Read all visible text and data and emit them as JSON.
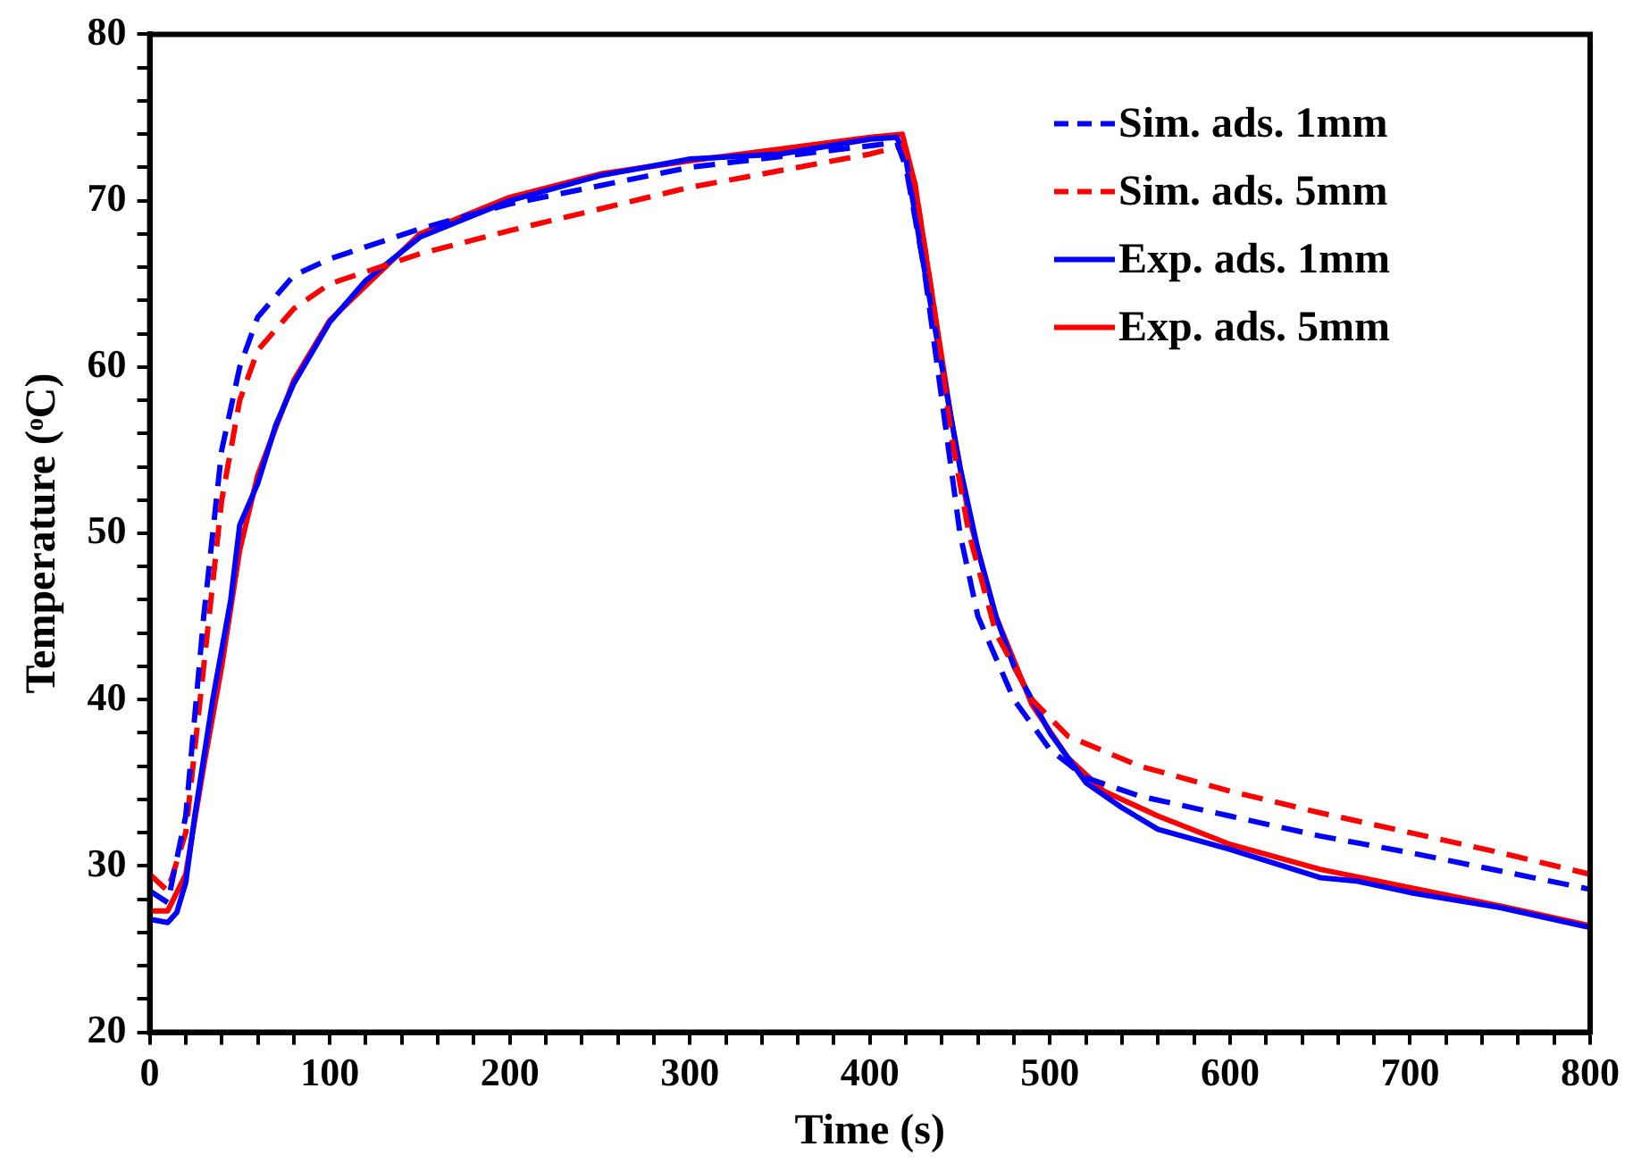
{
  "chart_data": {
    "type": "line",
    "xlabel": "Time (s)",
    "ylabel": "Temperature (ᵒC)",
    "xlim": [
      0,
      800
    ],
    "ylim": [
      20,
      80
    ],
    "xticks": [
      0,
      {
        "value": 20,
        "label": null
      },
      {
        "value": 40,
        "label": null
      },
      {
        "value": 60,
        "label": null
      },
      {
        "value": 80,
        "label": null
      },
      100,
      {
        "value": 120,
        "label": null
      },
      {
        "value": 140,
        "label": null
      },
      {
        "value": 160,
        "label": null
      },
      {
        "value": 180,
        "label": null
      },
      200,
      {
        "value": 220,
        "label": null
      },
      {
        "value": 240,
        "label": null
      },
      {
        "value": 260,
        "label": null
      },
      {
        "value": 280,
        "label": null
      },
      300,
      {
        "value": 320,
        "label": null
      },
      {
        "value": 340,
        "label": null
      },
      {
        "value": 360,
        "label": null
      },
      {
        "value": 380,
        "label": null
      },
      400,
      {
        "value": 420,
        "label": null
      },
      {
        "value": 440,
        "label": null
      },
      {
        "value": 460,
        "label": null
      },
      {
        "value": 480,
        "label": null
      },
      500,
      {
        "value": 520,
        "label": null
      },
      {
        "value": 540,
        "label": null
      },
      {
        "value": 560,
        "label": null
      },
      {
        "value": 580,
        "label": null
      },
      600,
      {
        "value": 620,
        "label": null
      },
      {
        "value": 640,
        "label": null
      },
      {
        "value": 660,
        "label": null
      },
      {
        "value": 680,
        "label": null
      },
      700,
      {
        "value": 720,
        "label": null
      },
      {
        "value": 740,
        "label": null
      },
      {
        "value": 760,
        "label": null
      },
      {
        "value": 780,
        "label": null
      },
      800
    ],
    "yticks": [
      20,
      {
        "value": 22,
        "label": null
      },
      {
        "value": 24,
        "label": null
      },
      {
        "value": 26,
        "label": null
      },
      {
        "value": 28,
        "label": null
      },
      30,
      {
        "value": 32,
        "label": null
      },
      {
        "value": 34,
        "label": null
      },
      {
        "value": 36,
        "label": null
      },
      {
        "value": 38,
        "label": null
      },
      40,
      {
        "value": 42,
        "label": null
      },
      {
        "value": 44,
        "label": null
      },
      {
        "value": 46,
        "label": null
      },
      {
        "value": 48,
        "label": null
      },
      50,
      {
        "value": 52,
        "label": null
      },
      {
        "value": 54,
        "label": null
      },
      {
        "value": 56,
        "label": null
      },
      {
        "value": 58,
        "label": null
      },
      60,
      {
        "value": 62,
        "label": null
      },
      {
        "value": 64,
        "label": null
      },
      {
        "value": 66,
        "label": null
      },
      {
        "value": 68,
        "label": null
      },
      70,
      {
        "value": 72,
        "label": null
      },
      {
        "value": 74,
        "label": null
      },
      {
        "value": 76,
        "label": null
      },
      {
        "value": 78,
        "label": null
      },
      80
    ],
    "grid": false,
    "legend": "top right",
    "marker": "none",
    "series": [
      {
        "name": "Sim. ads. 1mm",
        "color": "#0000ff",
        "line_style": "dashed",
        "x": [
          0,
          10,
          20,
          30,
          40,
          50,
          60,
          80,
          100,
          150,
          200,
          300,
          400,
          415,
          420,
          430,
          440,
          450,
          460,
          480,
          500,
          520,
          550,
          600,
          650,
          700,
          750,
          800
        ],
        "values": [
          28.5,
          27.8,
          33,
          45,
          55,
          60,
          63,
          65.5,
          66.5,
          68.3,
          69.8,
          72,
          73.3,
          73.5,
          72,
          66,
          58,
          50,
          45,
          40,
          37,
          35.3,
          34.2,
          33,
          31.8,
          30.8,
          29.7,
          28.6
        ]
      },
      {
        "name": "Sim. ads. 5mm",
        "color": "#ff0000",
        "line_style": "dashed",
        "x": [
          0,
          10,
          20,
          30,
          40,
          50,
          60,
          80,
          100,
          150,
          200,
          300,
          400,
          418,
          425,
          435,
          445,
          455,
          470,
          490,
          510,
          550,
          600,
          650,
          700,
          750,
          800
        ],
        "values": [
          29.5,
          28.5,
          32,
          42,
          52,
          58,
          61,
          63.5,
          65,
          66.8,
          68.2,
          70.8,
          72.8,
          73.3,
          71,
          64,
          56,
          50,
          44,
          40,
          37.8,
          36,
          34.5,
          33.2,
          32,
          30.8,
          29.5
        ]
      },
      {
        "name": "Exp. ads. 1mm",
        "color": "#0000ff",
        "line_style": "solid",
        "x": [
          0,
          10,
          15,
          20,
          25,
          35,
          45,
          50,
          60,
          70,
          80,
          100,
          120,
          150,
          200,
          250,
          300,
          350,
          400,
          415,
          420,
          430,
          440,
          450,
          460,
          470,
          480,
          490,
          500,
          520,
          540,
          560,
          580,
          600,
          650,
          670,
          700,
          750,
          800
        ],
        "values": [
          26.8,
          26.6,
          27.2,
          29,
          33,
          40,
          46,
          50.5,
          53,
          56.5,
          59,
          62.7,
          65.2,
          67.8,
          70,
          71.5,
          72.5,
          72.8,
          73.7,
          73.8,
          72.5,
          66,
          60,
          54,
          49,
          45,
          42,
          40,
          38,
          35,
          33.5,
          32.2,
          31.6,
          31,
          29.3,
          29.1,
          28.4,
          27.5,
          26.3
        ]
      },
      {
        "name": "Exp. ads. 5mm",
        "color": "#ff0000",
        "line_style": "solid",
        "x": [
          0,
          10,
          20,
          30,
          40,
          50,
          60,
          80,
          100,
          150,
          200,
          250,
          300,
          400,
          418,
          425,
          435,
          445,
          455,
          470,
          490,
          510,
          530,
          560,
          600,
          650,
          700,
          750,
          800
        ],
        "values": [
          27.3,
          27.3,
          29.5,
          36,
          42,
          49,
          53.5,
          59.2,
          62.8,
          68,
          70.2,
          71.6,
          72.4,
          73.8,
          74,
          71,
          64,
          57,
          51,
          45,
          39.7,
          36.5,
          34.5,
          33,
          31.3,
          29.8,
          28.7,
          27.6,
          26.4
        ]
      }
    ]
  }
}
